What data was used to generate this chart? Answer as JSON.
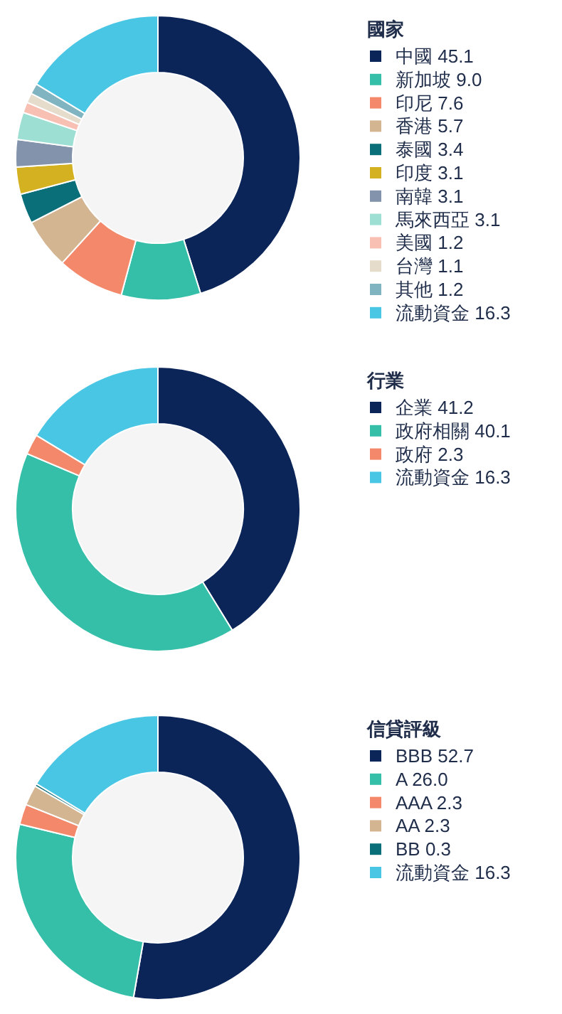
{
  "chart_data": [
    {
      "type": "donut",
      "legend_title": "國家",
      "legend": "right",
      "categories": [
        "中國",
        "新加坡",
        "印尼",
        "香港",
        "泰國",
        "印度",
        "南韓",
        "馬來西亞",
        "美國",
        "台灣",
        "其他",
        "流動資金"
      ],
      "values": [
        45.1,
        9.0,
        7.6,
        5.7,
        3.4,
        3.1,
        3.1,
        3.1,
        1.2,
        1.1,
        1.2,
        16.3
      ],
      "value_labels": [
        "45.1",
        "9.0",
        "7.6",
        "5.7",
        "3.4",
        "3.1",
        "3.1",
        "3.1",
        "1.2",
        "1.1",
        "1.2",
        "16.3"
      ],
      "colors": [
        "#0b2559",
        "#35bfa8",
        "#f3896a",
        "#d3b591",
        "#0b6f79",
        "#d4b120",
        "#8293ab",
        "#9edfd4",
        "#f8bfb3",
        "#e6dccc",
        "#7fb4c0",
        "#4ac6e5"
      ]
    },
    {
      "type": "donut",
      "legend_title": "行業",
      "legend": "right",
      "categories": [
        "企業",
        "政府相關",
        "政府",
        "流動資金"
      ],
      "values": [
        41.2,
        40.1,
        2.3,
        16.3
      ],
      "value_labels": [
        "41.2",
        "40.1",
        "2.3",
        "16.3"
      ],
      "colors": [
        "#0b2559",
        "#35bfa8",
        "#f3896a",
        "#4ac6e5"
      ]
    },
    {
      "type": "donut",
      "legend_title": "信貸評級",
      "legend": "right",
      "categories": [
        "BBB",
        "A",
        "AAA",
        "AA",
        "BB",
        "流動資金"
      ],
      "values": [
        52.7,
        26.0,
        2.3,
        2.3,
        0.3,
        16.3
      ],
      "value_labels": [
        "52.7",
        "26.0",
        "2.3",
        "2.3",
        "0.3",
        "16.3"
      ],
      "colors": [
        "#0b2559",
        "#35bfa8",
        "#f3896a",
        "#d3b591",
        "#0b6f79",
        "#4ac6e5"
      ]
    }
  ]
}
